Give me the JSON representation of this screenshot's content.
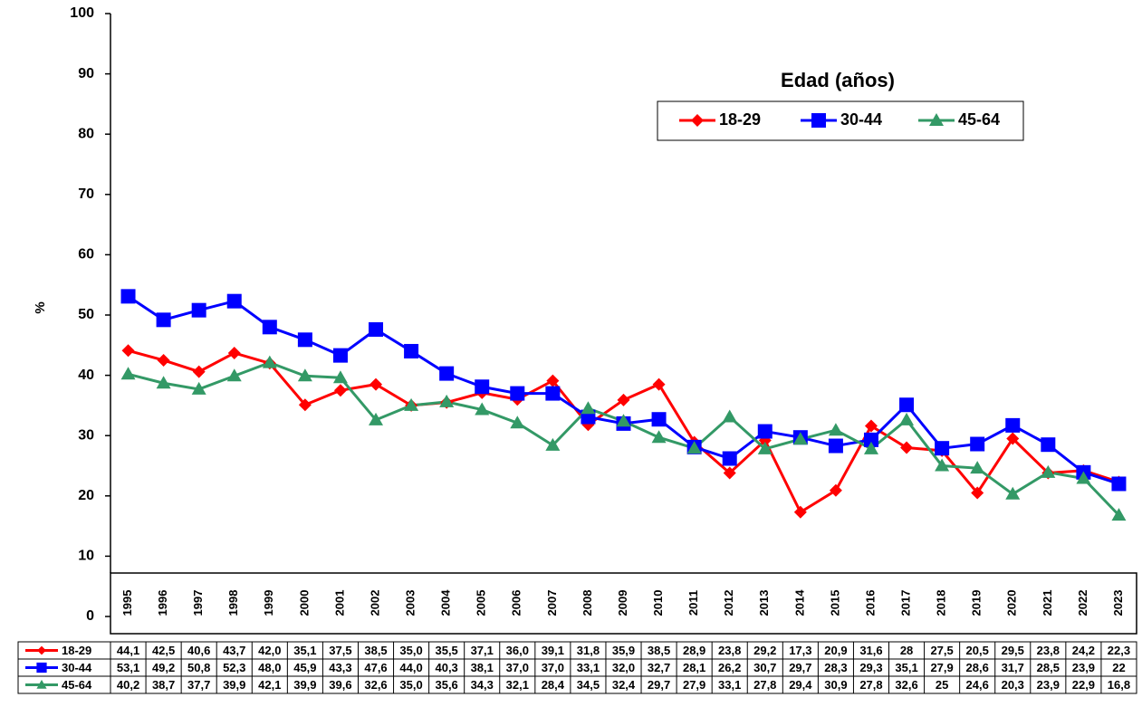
{
  "chart_data": {
    "type": "line",
    "y_label": "%",
    "legend_title": "Edad (años)",
    "legend_position": "top-right",
    "categories": [
      "1995",
      "1996",
      "1997",
      "1998",
      "1999",
      "2000",
      "2001",
      "2002",
      "2003",
      "2004",
      "2005",
      "2006",
      "2007",
      "2008",
      "2009",
      "2010",
      "2011",
      "2012",
      "2013",
      "2014",
      "2015",
      "2016",
      "2017",
      "2018",
      "2019",
      "2020",
      "2021",
      "2022",
      "2023"
    ],
    "ylim": [
      0,
      100
    ],
    "yticks": [
      0,
      10,
      20,
      30,
      40,
      50,
      60,
      70,
      80,
      90,
      100
    ],
    "series": [
      {
        "name": "18-29",
        "color": "#ff0000",
        "marker": "diamond",
        "values": [
          44.1,
          42.5,
          40.6,
          43.7,
          42.0,
          35.1,
          37.5,
          38.5,
          35.0,
          35.5,
          37.1,
          36.0,
          39.1,
          31.8,
          35.9,
          38.5,
          28.9,
          23.8,
          29.2,
          17.3,
          20.9,
          31.6,
          28,
          27.5,
          20.5,
          29.5,
          23.8,
          24.2,
          22.3
        ],
        "value_labels": [
          "44,1",
          "42,5",
          "40,6",
          "43,7",
          "42,0",
          "35,1",
          "37,5",
          "38,5",
          "35,0",
          "35,5",
          "37,1",
          "36,0",
          "39,1",
          "31,8",
          "35,9",
          "38,5",
          "28,9",
          "23,8",
          "29,2",
          "17,3",
          "20,9",
          "31,6",
          "28",
          "27,5",
          "20,5",
          "29,5",
          "23,8",
          "24,2",
          "22,3"
        ]
      },
      {
        "name": "30-44",
        "color": "#0000ff",
        "marker": "square",
        "values": [
          53.1,
          49.2,
          50.8,
          52.3,
          48.0,
          45.9,
          43.3,
          47.6,
          44.0,
          40.3,
          38.1,
          37.0,
          37.0,
          33.1,
          32.0,
          32.7,
          28.1,
          26.2,
          30.7,
          29.7,
          28.3,
          29.3,
          35.1,
          27.9,
          28.6,
          31.7,
          28.5,
          23.9,
          22
        ],
        "value_labels": [
          "53,1",
          "49,2",
          "50,8",
          "52,3",
          "48,0",
          "45,9",
          "43,3",
          "47,6",
          "44,0",
          "40,3",
          "38,1",
          "37,0",
          "37,0",
          "33,1",
          "32,0",
          "32,7",
          "28,1",
          "26,2",
          "30,7",
          "29,7",
          "28,3",
          "29,3",
          "35,1",
          "27,9",
          "28,6",
          "31,7",
          "28,5",
          "23,9",
          "22"
        ]
      },
      {
        "name": "45-64",
        "color": "#339966",
        "marker": "triangle",
        "values": [
          40.2,
          38.7,
          37.7,
          39.9,
          42.1,
          39.9,
          39.6,
          32.6,
          35.0,
          35.6,
          34.3,
          32.1,
          28.4,
          34.5,
          32.4,
          29.7,
          27.9,
          33.1,
          27.8,
          29.4,
          30.9,
          27.8,
          32.6,
          25,
          24.6,
          20.3,
          23.9,
          22.9,
          16.8
        ],
        "value_labels": [
          "40,2",
          "38,7",
          "37,7",
          "39,9",
          "42,1",
          "39,9",
          "39,6",
          "32,6",
          "35,0",
          "35,6",
          "34,3",
          "32,1",
          "28,4",
          "34,5",
          "32,4",
          "29,7",
          "27,9",
          "33,1",
          "27,8",
          "29,4",
          "30,9",
          "27,8",
          "32,6",
          "25",
          "24,6",
          "20,3",
          "23,9",
          "22,9",
          "16,8"
        ]
      }
    ]
  }
}
